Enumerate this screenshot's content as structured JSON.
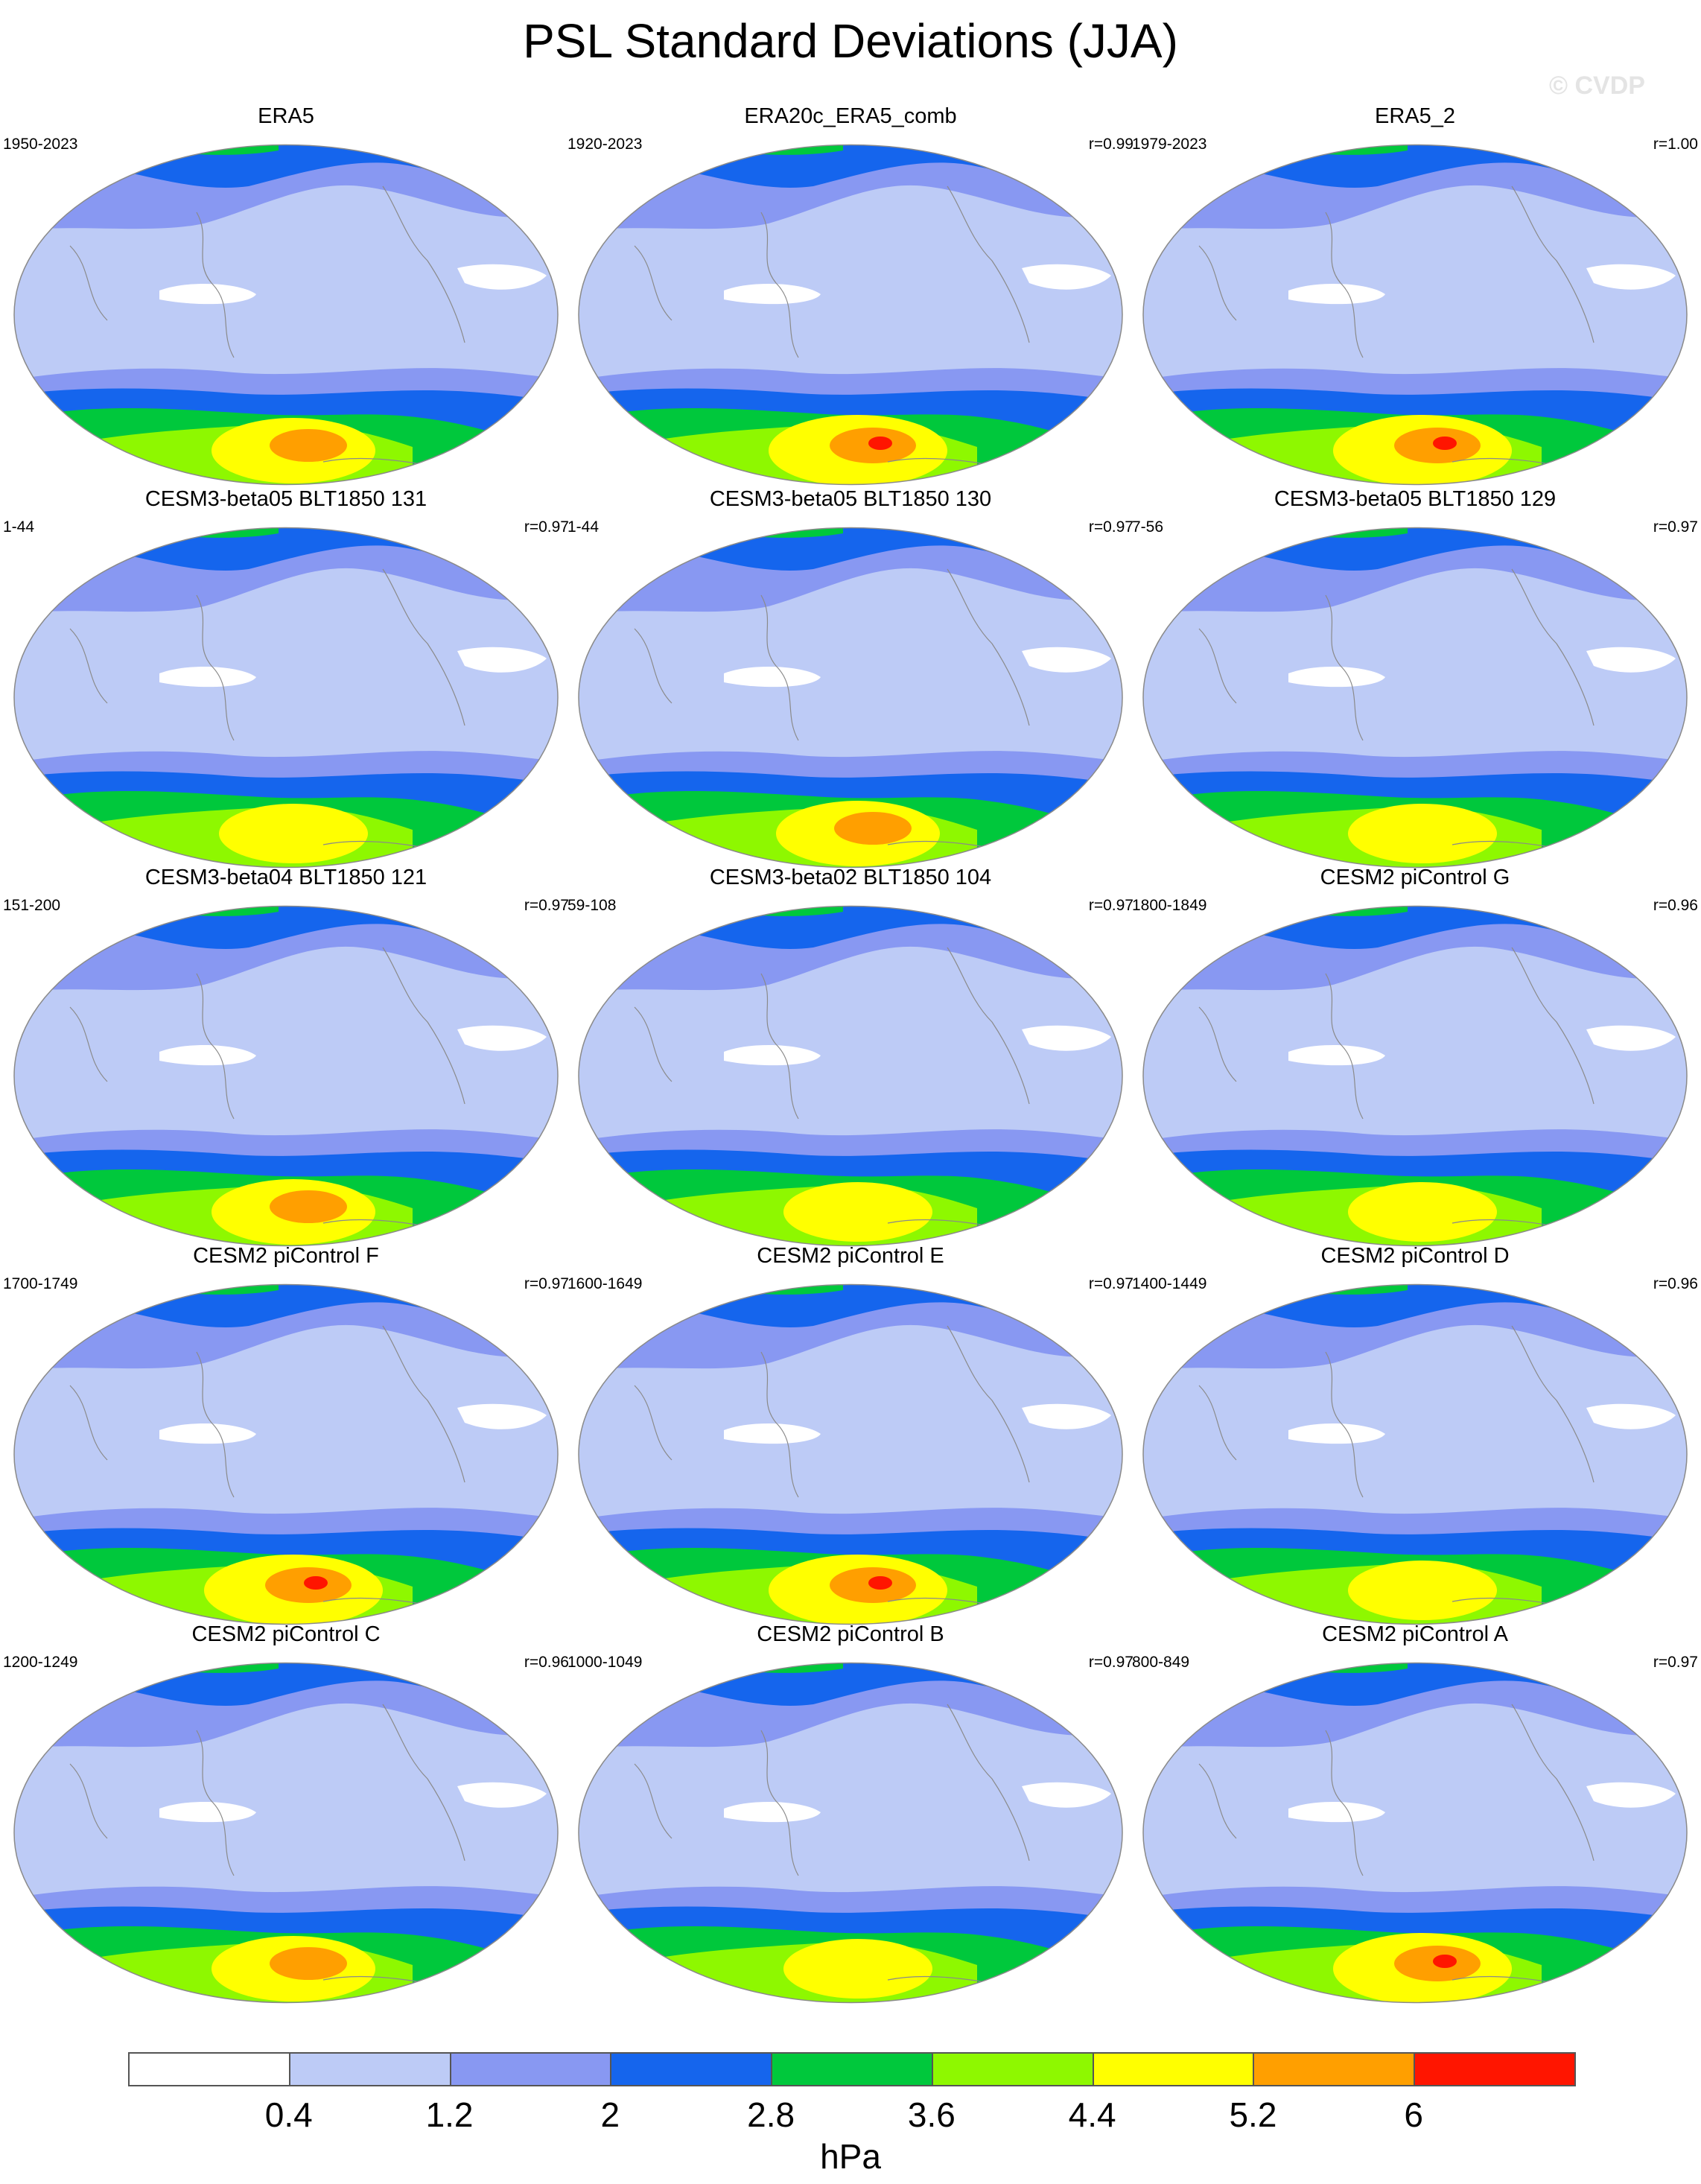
{
  "title": "PSL Standard Deviations (JJA)",
  "watermark": "© CVDP",
  "units": "hPa",
  "colorbar": {
    "tick_labels": [
      "0.4",
      "1.2",
      "2",
      "2.8",
      "3.6",
      "4.4",
      "5.2",
      "6"
    ],
    "colors": [
      "#ffffff",
      "#bdcbf6",
      "#8898f2",
      "#1565ed",
      "#00c83c",
      "#8ef800",
      "#ffff00",
      "#ff9f00",
      "#ff1500"
    ]
  },
  "panels": [
    {
      "name": "ERA5",
      "period": "1950-2023",
      "r": "",
      "intensity": 2
    },
    {
      "name": "ERA20c_ERA5_comb",
      "period": "1920-2023",
      "r": "r=0.99",
      "intensity": 3
    },
    {
      "name": "ERA5_2",
      "period": "1979-2023",
      "r": "r=1.00",
      "intensity": 3
    },
    {
      "name": "CESM3-beta05 BLT1850 131",
      "period": "1-44",
      "r": "r=0.97",
      "intensity": 1
    },
    {
      "name": "CESM3-beta05 BLT1850 130",
      "period": "1-44",
      "r": "r=0.97",
      "intensity": 2
    },
    {
      "name": "CESM3-beta05 BLT1850 129",
      "period": "7-56",
      "r": "r=0.97",
      "intensity": 1
    },
    {
      "name": "CESM3-beta04 BLT1850 121",
      "period": "151-200",
      "r": "r=0.97",
      "intensity": 2
    },
    {
      "name": "CESM3-beta02 BLT1850 104",
      "period": "59-108",
      "r": "r=0.97",
      "intensity": 1
    },
    {
      "name": "CESM2 piControl G",
      "period": "1800-1849",
      "r": "r=0.96",
      "intensity": 1
    },
    {
      "name": "CESM2 piControl F",
      "period": "1700-1749",
      "r": "r=0.97",
      "intensity": 3
    },
    {
      "name": "CESM2 piControl E",
      "period": "1600-1649",
      "r": "r=0.97",
      "intensity": 3
    },
    {
      "name": "CESM2 piControl D",
      "period": "1400-1449",
      "r": "r=0.96",
      "intensity": 1
    },
    {
      "name": "CESM2 piControl C",
      "period": "1200-1249",
      "r": "r=0.96",
      "intensity": 2
    },
    {
      "name": "CESM2 piControl B",
      "period": "1000-1049",
      "r": "r=0.97",
      "intensity": 1
    },
    {
      "name": "CESM2 piControl A",
      "period": "800-849",
      "r": "r=0.97",
      "intensity": 3
    }
  ]
}
